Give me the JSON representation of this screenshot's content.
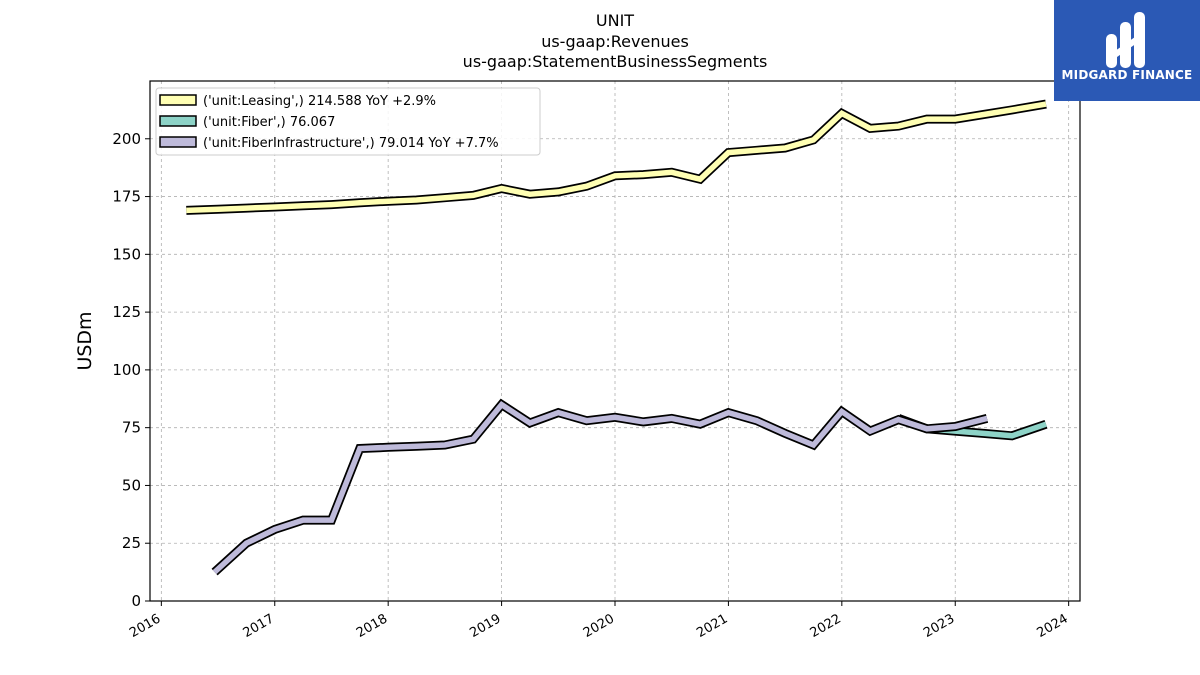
{
  "titles": [
    "UNIT",
    "us-gaap:Revenues",
    "us-gaap:StatementBusinessSegments"
  ],
  "logo": {
    "text": "MIDGARD FINANCE",
    "icon": "midgard-logo-icon",
    "background": "#2b59b5"
  },
  "chart_data": {
    "type": "line",
    "ylabel": "USDm",
    "xlim": [
      2015.9,
      2024.1
    ],
    "ylim": [
      0,
      225
    ],
    "yticks": [
      0,
      25,
      50,
      75,
      100,
      125,
      150,
      175,
      200
    ],
    "xticks": [
      "2016",
      "2017",
      "2018",
      "2019",
      "2020",
      "2021",
      "2022",
      "2023",
      "2024"
    ],
    "grid": true,
    "legend_position": "top-left",
    "series": [
      {
        "name": "('unit:Leasing',) 214.588 YoY +2.9%",
        "color": "#ffffb3",
        "points": [
          [
            2016.22,
            169
          ],
          [
            2016.5,
            169.5
          ],
          [
            2016.75,
            170
          ],
          [
            2017.0,
            170.5
          ],
          [
            2017.25,
            171
          ],
          [
            2017.5,
            171.5
          ],
          [
            2017.75,
            172.3
          ],
          [
            2018.0,
            173
          ],
          [
            2018.25,
            173.5
          ],
          [
            2018.5,
            174.5
          ],
          [
            2018.75,
            175.5
          ],
          [
            2019.0,
            178.5
          ],
          [
            2019.25,
            176
          ],
          [
            2019.5,
            177
          ],
          [
            2019.75,
            179.5
          ],
          [
            2020.0,
            184
          ],
          [
            2020.25,
            184.5
          ],
          [
            2020.5,
            185.5
          ],
          [
            2020.75,
            182.5
          ],
          [
            2021.0,
            194
          ],
          [
            2021.25,
            195
          ],
          [
            2021.5,
            196
          ],
          [
            2021.75,
            199.5
          ],
          [
            2022.0,
            211
          ],
          [
            2022.25,
            204.5
          ],
          [
            2022.5,
            205.5
          ],
          [
            2022.75,
            208.5
          ],
          [
            2023.0,
            208.5
          ],
          [
            2023.25,
            210.5
          ],
          [
            2023.5,
            212.5
          ],
          [
            2023.8,
            215
          ]
        ]
      },
      {
        "name": "('unit:Fiber',) 76.067",
        "color": "#8dd3c7",
        "points": [
          [
            2022.5,
            79
          ],
          [
            2022.75,
            74.5
          ],
          [
            2023.0,
            73.5
          ],
          [
            2023.25,
            72.5
          ],
          [
            2023.5,
            71.5
          ],
          [
            2023.8,
            76.5
          ]
        ]
      },
      {
        "name": "('unit:FiberInfrastructure',) 79.014 YoY +7.7%",
        "color": "#bebada",
        "points": [
          [
            2016.47,
            12.5
          ],
          [
            2016.75,
            25
          ],
          [
            2017.0,
            31
          ],
          [
            2017.25,
            35
          ],
          [
            2017.5,
            35
          ],
          [
            2017.75,
            66
          ],
          [
            2018.0,
            66.5
          ],
          [
            2018.25,
            67
          ],
          [
            2018.5,
            67.5
          ],
          [
            2018.75,
            70
          ],
          [
            2019.0,
            85
          ],
          [
            2019.25,
            77
          ],
          [
            2019.5,
            81.5
          ],
          [
            2019.75,
            78
          ],
          [
            2020.0,
            79.5
          ],
          [
            2020.25,
            77.5
          ],
          [
            2020.5,
            79
          ],
          [
            2020.75,
            76.5
          ],
          [
            2021.0,
            81.5
          ],
          [
            2021.25,
            78
          ],
          [
            2021.5,
            72.5
          ],
          [
            2021.75,
            67.5
          ],
          [
            2022.0,
            82
          ],
          [
            2022.25,
            73.5
          ],
          [
            2022.5,
            78.5
          ],
          [
            2022.75,
            74.5
          ],
          [
            2023.0,
            75.5
          ],
          [
            2023.28,
            79
          ]
        ]
      }
    ]
  }
}
